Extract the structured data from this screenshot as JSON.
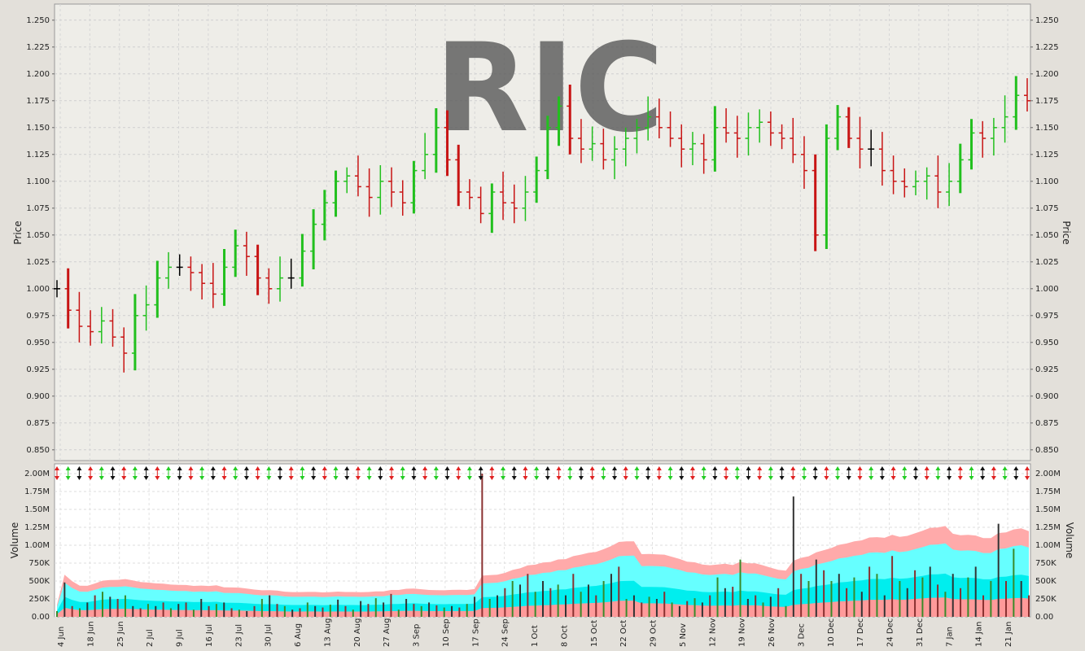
{
  "chart_data": [
    {
      "type": "ohlc",
      "title": "RIC",
      "ylabel": "Price",
      "ylim": [
        0.84,
        1.265
      ],
      "yticks": [
        "0.850",
        "0.875",
        "0.900",
        "0.925",
        "0.950",
        "0.975",
        "1.000",
        "1.025",
        "1.050",
        "1.075",
        "1.100",
        "1.125",
        "1.150",
        "1.175",
        "1.200",
        "1.225",
        "1.250"
      ],
      "grid": true,
      "colors": {
        "up": "#22c01e",
        "down": "#c81414",
        "flat": "#000000"
      },
      "series": [
        {
          "name": "",
          "closes": [
            1.0,
            0.98,
            0.965,
            0.96,
            0.97,
            0.955,
            0.94,
            0.975,
            0.985,
            1.01,
            1.02,
            1.02,
            1.015,
            1.005,
            0.995,
            1.02,
            1.04,
            1.03,
            1.01,
            1.0,
            1.01,
            1.01,
            1.035,
            1.06,
            1.08,
            1.1,
            1.105,
            1.095,
            1.085,
            1.1,
            1.09,
            1.08,
            1.11,
            1.125,
            1.15,
            1.12,
            1.09,
            1.085,
            1.07,
            1.09,
            1.08,
            1.075,
            1.09,
            1.11,
            1.15,
            1.17,
            1.14,
            1.13,
            1.135,
            1.12,
            1.13,
            1.14,
            1.15,
            1.16,
            1.15,
            1.14,
            1.13,
            1.135,
            1.12,
            1.15,
            1.145,
            1.14,
            1.15,
            1.155,
            1.145,
            1.14,
            1.125,
            1.11,
            1.05,
            1.14,
            1.16,
            1.14,
            1.13,
            1.13,
            1.11,
            1.1,
            1.095,
            1.1,
            1.105,
            1.09,
            1.1,
            1.12,
            1.145,
            1.14,
            1.15,
            1.16,
            1.18,
            1.175
          ],
          "ohlc_note": "approximate"
        }
      ]
    },
    {
      "type": "bar",
      "ylabel": "Volume",
      "ylim": [
        0,
        2000000
      ],
      "yticks": [
        "0.00",
        "250K",
        "500K",
        "750K",
        "1.00M",
        "1.25M",
        "1.50M",
        "1.75M",
        "2.00M"
      ],
      "grid": true,
      "xticks": [
        "4 Jun",
        "18 Jun",
        "25 Jun",
        "2 Jul",
        "9 Jul",
        "16 Jul",
        "23 Jul",
        "30 Jul",
        "6 Aug",
        "13 Aug",
        "20 Aug",
        "27 Aug",
        "3 Sep",
        "10 Sep",
        "17 Sep",
        "24 Sep",
        "1 Oct",
        "8 Oct",
        "15 Oct",
        "22 Oct",
        "29 Oct",
        "5 Nov",
        "12 Nov",
        "19 Nov",
        "26 Nov",
        "3 Dec",
        "10 Dec",
        "17 Dec",
        "24 Dec",
        "31 Dec",
        "7 Jan",
        "14 Jan",
        "21 Jan"
      ],
      "colors": {
        "band_outer": "#ffaaaa",
        "band_inner": "#66ffff",
        "band_core": "#00eeee",
        "bar": "#555555"
      },
      "series": [
        {
          "name": "",
          "volumes": [
            80000,
            480000,
            150000,
            120000,
            200000,
            300000,
            350000,
            280000,
            250000,
            300000,
            150000,
            120000,
            180000,
            150000,
            200000,
            120000,
            180000,
            200000,
            100000,
            250000,
            150000,
            180000,
            200000,
            120000,
            100000,
            80000,
            150000,
            250000,
            300000,
            180000,
            150000,
            100000,
            120000,
            200000,
            150000,
            130000,
            170000,
            240000,
            150000,
            100000,
            220000,
            180000,
            260000,
            200000,
            320000,
            100000,
            250000,
            180000,
            150000,
            200000,
            160000,
            130000,
            150000,
            130000,
            180000,
            280000,
            2000000,
            250000,
            300000,
            400000,
            500000,
            450000,
            600000,
            350000,
            500000,
            400000,
            450000,
            300000,
            600000,
            350000,
            450000,
            300000,
            500000,
            600000,
            700000,
            250000,
            300000,
            200000,
            280000,
            250000,
            350000,
            200000,
            150000,
            220000,
            260000,
            200000,
            300000,
            550000,
            400000,
            420000,
            800000,
            250000,
            300000,
            200000,
            280000,
            400000,
            150000,
            1680000,
            600000,
            500000,
            800000,
            650000,
            500000,
            600000,
            400000,
            550000,
            350000,
            700000,
            600000,
            300000,
            850000,
            500000,
            400000,
            650000,
            550000,
            700000,
            450000,
            350000,
            600000,
            400000,
            550000,
            700000,
            300000,
            500000,
            1300000,
            500000,
            950000,
            500000,
            300000
          ]
        }
      ]
    }
  ]
}
